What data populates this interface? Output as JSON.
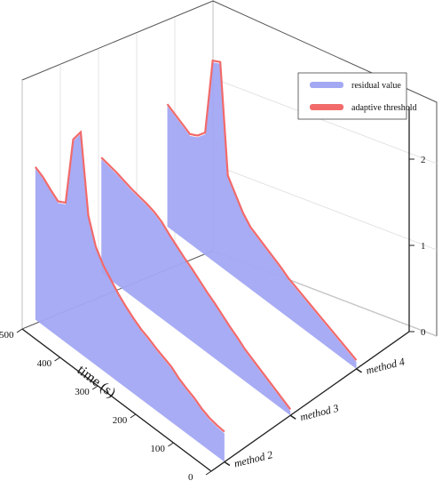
{
  "chart_data": {
    "type": "area",
    "projection": "3d-waterfall",
    "title": "",
    "xlabel": "time (s)",
    "ylabel": "",
    "zlabel": "",
    "x_ticks": [
      0,
      100,
      200,
      300,
      400,
      500
    ],
    "z_ticks": [
      0,
      1,
      2
    ],
    "xlim": [
      0,
      500
    ],
    "zlim": [
      0,
      2.6
    ],
    "categories": [
      "method 2",
      "method 3",
      "method 4"
    ],
    "grid": true,
    "legend_position": "top-right",
    "legend": [
      {
        "label": "residual value",
        "color": "#a3a8f3"
      },
      {
        "label": "adaptive threshold",
        "color": "#f26a6a"
      }
    ],
    "colors": {
      "residual": "#a3a8f3",
      "threshold": "#f26a6a"
    },
    "series": [
      {
        "category": "method 2",
        "time": [
          0,
          20,
          40,
          60,
          80,
          100,
          120,
          140,
          160,
          180,
          200,
          220,
          240,
          260,
          280,
          300,
          320,
          340,
          360,
          380,
          400,
          420,
          440,
          460,
          480,
          500
        ],
        "residual": [
          0.33,
          0.34,
          0.36,
          0.4,
          0.46,
          0.5,
          0.55,
          0.62,
          0.66,
          0.7,
          0.75,
          0.79,
          0.85,
          0.92,
          1.0,
          1.1,
          1.2,
          1.35,
          1.65,
          2.55,
          2.4,
          1.6,
          1.55,
          1.62,
          1.7,
          1.75
        ],
        "threshold": [
          0.35,
          0.36,
          0.38,
          0.42,
          0.48,
          0.52,
          0.57,
          0.64,
          0.68,
          0.72,
          0.77,
          0.81,
          0.87,
          0.94,
          1.02,
          1.12,
          1.22,
          1.37,
          1.67,
          2.57,
          2.42,
          1.62,
          1.57,
          1.64,
          1.72,
          1.77
        ]
      },
      {
        "category": "method 3",
        "time": [
          0,
          20,
          40,
          60,
          80,
          100,
          120,
          140,
          160,
          180,
          200,
          220,
          240,
          260,
          280,
          300,
          320,
          340,
          360,
          380,
          400,
          420,
          440,
          460,
          480,
          500
        ],
        "residual": [
          0.05,
          0.1,
          0.15,
          0.2,
          0.25,
          0.3,
          0.35,
          0.42,
          0.48,
          0.55,
          0.62,
          0.68,
          0.75,
          0.82,
          0.88,
          0.95,
          1.02,
          1.1,
          1.15,
          1.18,
          1.2,
          1.22,
          1.25,
          1.28,
          1.3,
          1.32
        ],
        "threshold": [
          0.07,
          0.12,
          0.17,
          0.22,
          0.27,
          0.32,
          0.37,
          0.44,
          0.5,
          0.57,
          0.64,
          0.7,
          0.77,
          0.84,
          0.9,
          0.97,
          1.04,
          1.12,
          1.17,
          1.2,
          1.22,
          1.24,
          1.27,
          1.3,
          1.32,
          1.34
        ]
      },
      {
        "category": "method 4",
        "time": [
          0,
          20,
          40,
          60,
          80,
          100,
          120,
          140,
          160,
          180,
          200,
          220,
          240,
          260,
          280,
          300,
          320,
          340,
          360,
          380,
          400,
          420,
          440,
          460,
          480,
          500
        ],
        "residual": [
          0.08,
          0.12,
          0.16,
          0.2,
          0.24,
          0.28,
          0.32,
          0.36,
          0.4,
          0.44,
          0.5,
          0.55,
          0.6,
          0.65,
          0.7,
          0.8,
          0.95,
          1.1,
          2.35,
          2.3,
          1.4,
          1.3,
          1.25,
          1.3,
          1.35,
          1.4
        ],
        "threshold": [
          0.1,
          0.14,
          0.18,
          0.22,
          0.26,
          0.3,
          0.34,
          0.38,
          0.42,
          0.46,
          0.52,
          0.57,
          0.62,
          0.67,
          0.72,
          0.82,
          0.97,
          1.12,
          2.37,
          2.32,
          1.42,
          1.32,
          1.27,
          1.32,
          1.37,
          1.42
        ]
      }
    ]
  }
}
